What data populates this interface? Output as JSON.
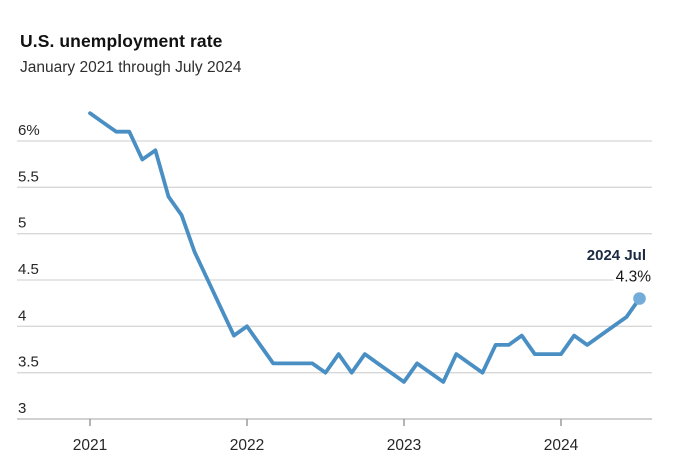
{
  "header": {
    "title": "U.S. unemployment rate",
    "subtitle": "January 2021 through July 2024"
  },
  "chart_data": {
    "type": "line",
    "title": "U.S. unemployment rate",
    "subtitle": "January 2021 through July 2024",
    "ylim": [
      3,
      6
    ],
    "grid": true,
    "legend_position": "none",
    "y_ticks": [
      {
        "label": "6%",
        "value": 6
      },
      {
        "label": "5.5",
        "value": 5.5
      },
      {
        "label": "5",
        "value": 5
      },
      {
        "label": "4.5",
        "value": 4.5
      },
      {
        "label": "4",
        "value": 4
      },
      {
        "label": "3.5",
        "value": 3.5
      },
      {
        "label": "3",
        "value": 3
      }
    ],
    "x_ticks": [
      {
        "label": "2021",
        "month_index": 0
      },
      {
        "label": "2022",
        "month_index": 12
      },
      {
        "label": "2023",
        "month_index": 24
      },
      {
        "label": "2024",
        "month_index": 36
      }
    ],
    "x": [
      "2021-01",
      "2021-02",
      "2021-03",
      "2021-04",
      "2021-05",
      "2021-06",
      "2021-07",
      "2021-08",
      "2021-09",
      "2021-10",
      "2021-11",
      "2021-12",
      "2022-01",
      "2022-02",
      "2022-03",
      "2022-04",
      "2022-05",
      "2022-06",
      "2022-07",
      "2022-08",
      "2022-09",
      "2022-10",
      "2022-11",
      "2022-12",
      "2023-01",
      "2023-02",
      "2023-03",
      "2023-04",
      "2023-05",
      "2023-06",
      "2023-07",
      "2023-08",
      "2023-09",
      "2023-10",
      "2023-11",
      "2023-12",
      "2024-01",
      "2024-02",
      "2024-03",
      "2024-04",
      "2024-05",
      "2024-06",
      "2024-07"
    ],
    "series": [
      {
        "name": "U.S. unemployment rate",
        "values": [
          6.3,
          6.2,
          6.1,
          6.1,
          5.8,
          5.9,
          5.4,
          5.2,
          4.8,
          4.5,
          4.2,
          3.9,
          4.0,
          3.8,
          3.6,
          3.6,
          3.6,
          3.6,
          3.5,
          3.7,
          3.5,
          3.7,
          3.6,
          3.5,
          3.4,
          3.6,
          3.5,
          3.4,
          3.7,
          3.6,
          3.5,
          3.8,
          3.8,
          3.9,
          3.7,
          3.7,
          3.7,
          3.9,
          3.8,
          3.9,
          4.0,
          4.1,
          4.3
        ]
      }
    ],
    "annotation": {
      "label": "2024 Jul",
      "value_label": "4.3%"
    },
    "colors": {
      "line": "#4a8fc4",
      "dot": "#73acd9",
      "grid": "#d8d8d8",
      "axis": "#c2c2c2",
      "tick": "#9a9a9a",
      "text": "#262626",
      "annotation_date": "#1b2a43",
      "annotation_value": "#161616",
      "background": "#ffffff"
    }
  }
}
